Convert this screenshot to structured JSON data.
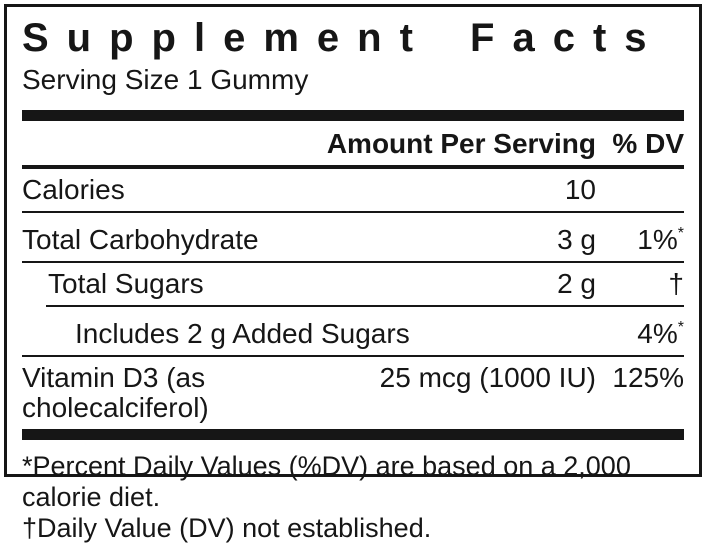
{
  "label": {
    "title": "Supplement Facts",
    "serving_size": "Serving Size 1 Gummy",
    "columns": {
      "amount": "Amount Per Serving",
      "dv": "% DV"
    },
    "rows": [
      {
        "name": "Calories",
        "amount": "10",
        "dv": ""
      },
      {
        "name": "Total Carbohydrate",
        "amount": "3 g",
        "dv": "1%",
        "dv_note": "*"
      },
      {
        "name": "Total Sugars",
        "amount": "2 g",
        "dv": "†"
      },
      {
        "name": "Includes 2 g Added Sugars",
        "amount": "",
        "dv": "4%",
        "dv_note": "*"
      },
      {
        "name": "Vitamin D3 (as cholecalciferol)",
        "amount": "25 mcg (1000 IU)",
        "dv": "125%"
      }
    ],
    "footnotes": [
      "*Percent Daily Values (%DV) are based on a 2,000 calorie diet.",
      "†Daily Value (DV) not established."
    ],
    "colors": {
      "ink": "#161616",
      "background": "#ffffff"
    }
  }
}
